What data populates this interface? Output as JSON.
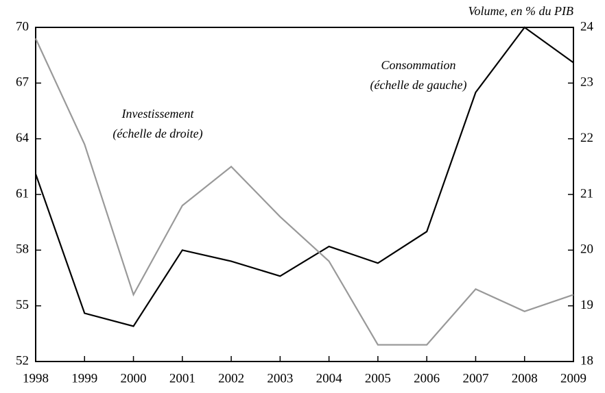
{
  "chart_data": {
    "type": "line",
    "y_unit_label": "Volume, en % du PIB",
    "categories": [
      "1998",
      "1999",
      "2000",
      "2001",
      "2002",
      "2003",
      "2004",
      "2005",
      "2006",
      "2007",
      "2008",
      "2009"
    ],
    "series": [
      {
        "name": "Consommation",
        "note": "(échelle de gauche)",
        "color": "#000000",
        "axis": "y",
        "values": [
          62.1,
          54.6,
          53.9,
          58.0,
          57.4,
          56.6,
          58.2,
          57.3,
          59.0,
          66.5,
          70.0,
          68.1
        ]
      },
      {
        "name": "Investissement",
        "note": "(échelle de droite)",
        "color": "#999999",
        "axis": "y2",
        "values": [
          23.8,
          21.9,
          19.2,
          20.8,
          21.5,
          20.6,
          19.8,
          18.3,
          18.3,
          19.3,
          18.9,
          19.2
        ]
      }
    ],
    "ylim": [
      52,
      70
    ],
    "yticks": [
      52,
      55,
      58,
      61,
      64,
      67,
      70
    ],
    "y2lim": [
      18,
      24
    ],
    "y2ticks": [
      18,
      19,
      20,
      21,
      22,
      23,
      24
    ]
  }
}
